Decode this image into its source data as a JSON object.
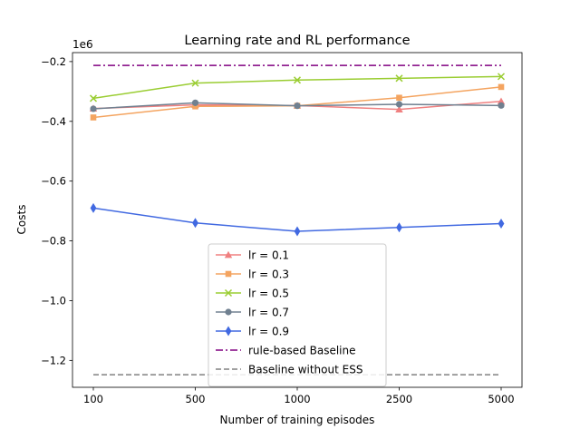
{
  "chart_data": {
    "type": "line",
    "title": "Learning rate and RL performance",
    "xlabel": "Number of training episodes",
    "ylabel": "Costs",
    "offset_label": "1e6",
    "categories": [
      "100",
      "500",
      "1000",
      "2500",
      "5000"
    ],
    "ylim": [
      -1.29,
      -0.17
    ],
    "yticks": [
      -1.2,
      -1.0,
      -0.8,
      -0.6,
      -0.4,
      -0.2
    ],
    "ytick_labels": [
      "−1.2",
      "−1.0",
      "−0.8",
      "−0.6",
      "−0.4",
      "−0.2"
    ],
    "grid": false,
    "legend_position": "lower-center",
    "series": [
      {
        "name": "lr = 0.1",
        "values": [
          -0.357,
          -0.345,
          -0.347,
          -0.36,
          -0.333
        ],
        "color": "#f08080",
        "marker": "triangle",
        "dash": "solid"
      },
      {
        "name": "lr = 0.3",
        "values": [
          -0.387,
          -0.35,
          -0.348,
          -0.321,
          -0.285
        ],
        "color": "#f4a460",
        "marker": "square",
        "dash": "solid"
      },
      {
        "name": "lr = 0.5",
        "values": [
          -0.323,
          -0.272,
          -0.262,
          -0.256,
          -0.25
        ],
        "color": "#9acd32",
        "marker": "x",
        "dash": "solid"
      },
      {
        "name": "lr = 0.7",
        "values": [
          -0.358,
          -0.338,
          -0.348,
          -0.343,
          -0.347
        ],
        "color": "#708090",
        "marker": "circle",
        "dash": "solid"
      },
      {
        "name": "lr = 0.9",
        "values": [
          -0.69,
          -0.74,
          -0.768,
          -0.755,
          -0.742
        ],
        "color": "#4169e1",
        "marker": "diamond",
        "dash": "solid"
      },
      {
        "name": "rule-based Baseline",
        "values": [
          -0.213,
          -0.213,
          -0.213,
          -0.213,
          -0.213
        ],
        "color": "#800080",
        "marker": "none",
        "dash": "dashdot"
      },
      {
        "name": "Baseline without ESS",
        "values": [
          -1.248,
          -1.248,
          -1.248,
          -1.248,
          -1.248
        ],
        "color": "#808080",
        "marker": "none",
        "dash": "dashed"
      }
    ]
  }
}
